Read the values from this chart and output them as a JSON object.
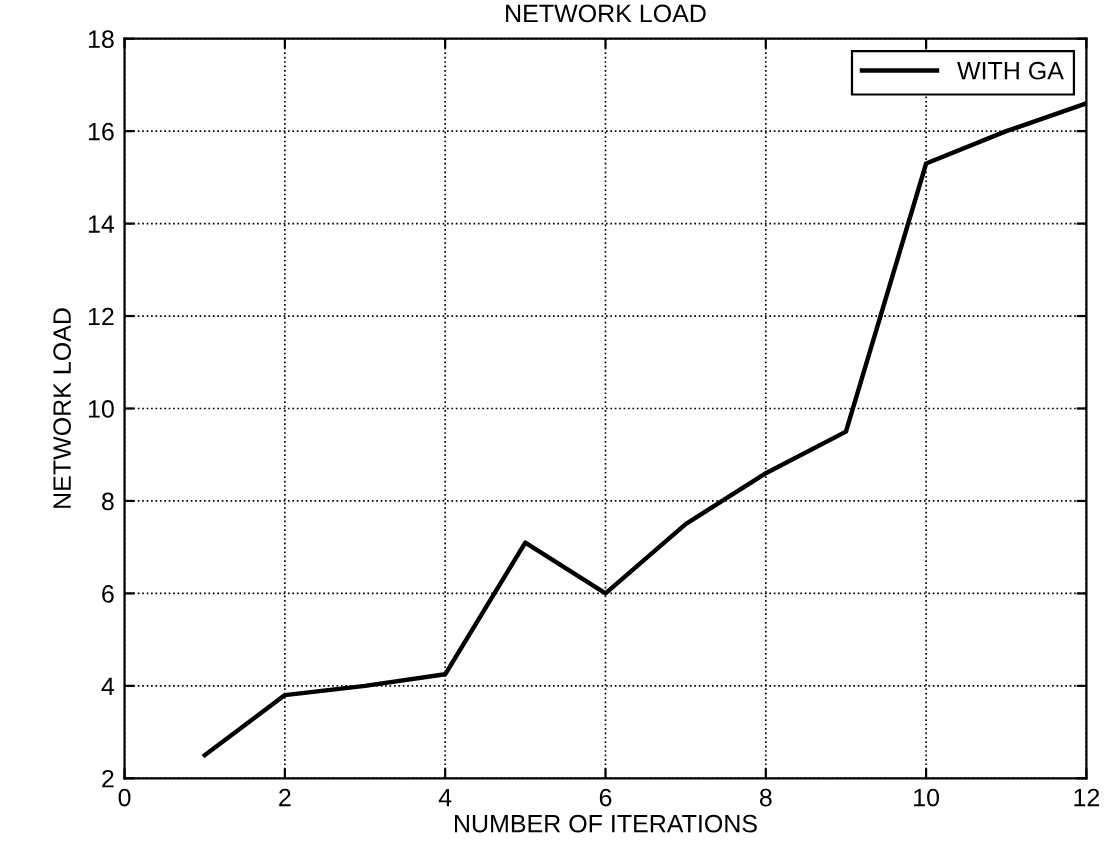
{
  "chart_data": {
    "type": "line",
    "title": "NETWORK LOAD",
    "xlabel": "NUMBER OF ITERATIONS",
    "ylabel": "NETWORK LOAD",
    "x": [
      1,
      2,
      3,
      4,
      5,
      6,
      7,
      8,
      9,
      10,
      11,
      12
    ],
    "series": [
      {
        "name": "WITH GA",
        "color": "#000000",
        "values": [
          2.5,
          3.8,
          4.0,
          4.25,
          7.1,
          6.0,
          7.5,
          8.6,
          9.5,
          15.3,
          16.0,
          16.6
        ]
      }
    ],
    "xlim": [
      0,
      12
    ],
    "xticks": [
      0,
      2,
      4,
      6,
      8,
      10,
      12
    ],
    "ylim": [
      2,
      18
    ],
    "yticks": [
      2,
      4,
      6,
      8,
      10,
      12,
      14,
      16,
      18
    ],
    "grid": true,
    "legend": "top right",
    "marker": "none",
    "line_style": "solid"
  }
}
